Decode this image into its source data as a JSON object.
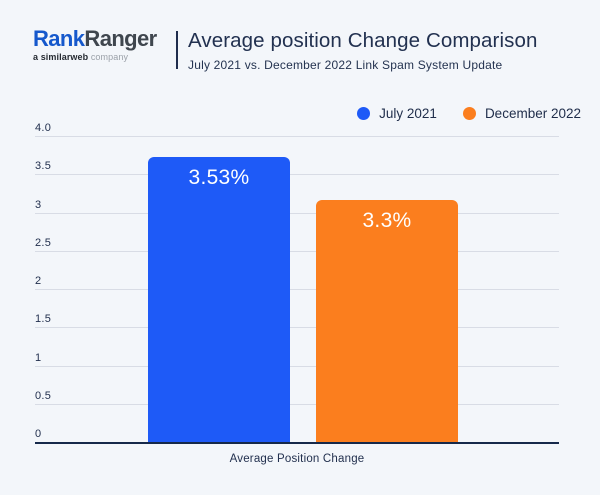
{
  "header": {
    "logo": {
      "brand_part1": "Rank",
      "brand_part2": "Ranger",
      "tagline_bold": "a similarweb",
      "tagline_rest": " company"
    },
    "title": "Average position Change Comparison",
    "subtitle": "July 2021 vs. December 2022 Link Spam System Update"
  },
  "legend": {
    "items": [
      {
        "label": "July 2021",
        "color": "#1e5af7"
      },
      {
        "label": "December 2022",
        "color": "#fb7e1e"
      }
    ]
  },
  "chart_data": {
    "type": "bar",
    "title": "Average position Change Comparison",
    "subtitle": "July 2021 vs. December 2022 Link Spam System Update",
    "categories": [
      "Average Position Change"
    ],
    "series": [
      {
        "name": "July 2021",
        "values": [
          3.53
        ],
        "label": "3.53%",
        "color": "#1e5af7"
      },
      {
        "name": "December 2022",
        "values": [
          3.3
        ],
        "label": "3.3%",
        "color": "#fb7e1e"
      }
    ],
    "xlabel": "Average Position Change",
    "ylabel": "",
    "ylim": [
      0,
      4
    ],
    "yticks": [
      {
        "label": "4.0",
        "value": 4.0
      },
      {
        "label": "3.5",
        "value": 3.5
      },
      {
        "label": "3",
        "value": 3.0
      },
      {
        "label": "2.5",
        "value": 2.5
      },
      {
        "label": "2",
        "value": 2.0
      },
      {
        "label": "1.5",
        "value": 1.5
      },
      {
        "label": "1",
        "value": 1.0
      },
      {
        "label": "0.5",
        "value": 0.5
      },
      {
        "label": "0",
        "value": 0.0
      }
    ],
    "grid": true,
    "legend_position": "top-right"
  },
  "colors": {
    "background": "#f3f6fa",
    "accent_blue": "#1e5af7",
    "accent_orange": "#fb7e1e",
    "logo_blue": "#1558cc",
    "logo_dark": "#3f464e",
    "text_dark": "#223150",
    "gridline": "#d8dce5",
    "axis": "#16294a",
    "bar_label_text": "#ffffff"
  }
}
